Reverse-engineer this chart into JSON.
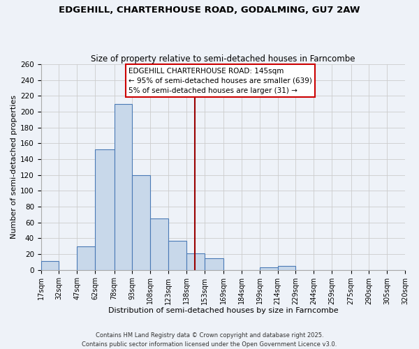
{
  "title": "EDGEHILL, CHARTERHOUSE ROAD, GODALMING, GU7 2AW",
  "subtitle": "Size of property relative to semi-detached houses in Farncombe",
  "xlabel": "Distribution of semi-detached houses by size in Farncombe",
  "ylabel": "Number of semi-detached properties",
  "bin_edges": [
    17,
    32,
    47,
    62,
    78,
    93,
    108,
    123,
    138,
    153,
    169,
    184,
    199,
    214,
    229,
    244,
    259,
    275,
    290,
    305,
    320
  ],
  "bar_heights": [
    11,
    0,
    30,
    152,
    210,
    120,
    65,
    37,
    21,
    15,
    0,
    0,
    3,
    5,
    0,
    0,
    0,
    0,
    0,
    0
  ],
  "bar_color": "#c8d8ea",
  "bar_edge_color": "#4a7ab5",
  "grid_color": "#cccccc",
  "vline_x": 145,
  "vline_color": "#990000",
  "annotation_title": "EDGEHILL CHARTERHOUSE ROAD: 145sqm",
  "annotation_line1": "← 95% of semi-detached houses are smaller (639)",
  "annotation_line2": "5% of semi-detached houses are larger (31) →",
  "annotation_box_facecolor": "#ffffff",
  "annotation_box_edgecolor": "#cc0000",
  "ylim": [
    0,
    260
  ],
  "yticks": [
    0,
    20,
    40,
    60,
    80,
    100,
    120,
    140,
    160,
    180,
    200,
    220,
    240,
    260
  ],
  "tick_labels": [
    "17sqm",
    "32sqm",
    "47sqm",
    "62sqm",
    "78sqm",
    "93sqm",
    "108sqm",
    "123sqm",
    "138sqm",
    "153sqm",
    "169sqm",
    "184sqm",
    "199sqm",
    "214sqm",
    "229sqm",
    "244sqm",
    "259sqm",
    "275sqm",
    "290sqm",
    "305sqm",
    "320sqm"
  ],
  "footer1": "Contains HM Land Registry data © Crown copyright and database right 2025.",
  "footer2": "Contains public sector information licensed under the Open Government Licence v3.0.",
  "bg_color": "#eef2f8",
  "plot_bg_color": "#eef2f8",
  "title_fontsize": 9.5,
  "subtitle_fontsize": 8.5,
  "xlabel_fontsize": 8.0,
  "ylabel_fontsize": 8.0,
  "tick_fontsize": 7.0,
  "annot_fontsize": 7.5,
  "footer_fontsize": 6.0
}
